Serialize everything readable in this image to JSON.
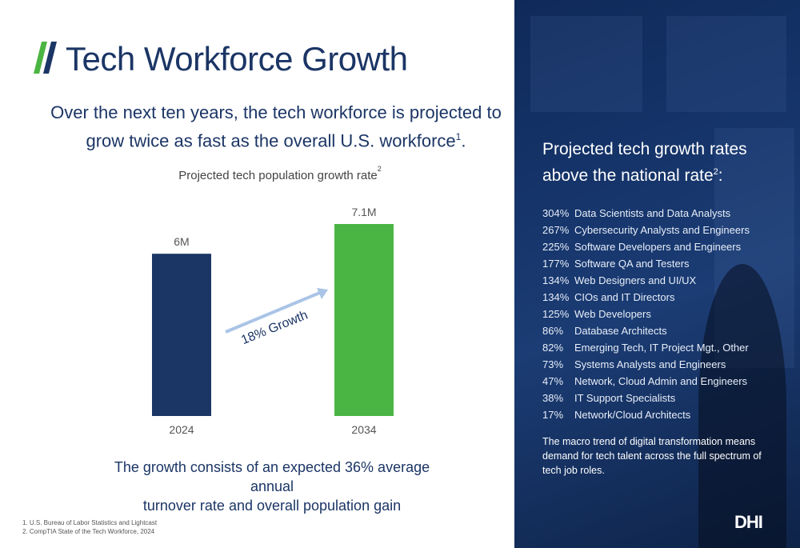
{
  "slide": {
    "title": "Tech Workforce Growth",
    "subtitle_line1": "Over the next ten years, the tech workforce is projected to",
    "subtitle_line2": "grow twice as fast as the overall U.S. workforce",
    "subtitle_sup": "1",
    "subtitle_end": ".",
    "footer_line1": "The growth consists of an expected 36% average annual",
    "footer_line2": "turnover rate and overall population gain",
    "footnote1": "1. U.S. Bureau of Labor Statistics and Lightcast",
    "footnote2": "2. CompTIA State of the Tech Workforce, 2024"
  },
  "chart_data": {
    "type": "bar",
    "title": "Projected tech population growth rate",
    "title_sup": "2",
    "categories": [
      "2024",
      "2034"
    ],
    "values": [
      6,
      7.1
    ],
    "value_labels": [
      "6M",
      "7.1M"
    ],
    "unit": "M",
    "ylim": [
      0,
      7.1
    ],
    "colors": [
      "#1b3565",
      "#4bb543"
    ],
    "annotation": "18% Growth",
    "annotation_color": "#a9c4e6",
    "grid": false
  },
  "panel": {
    "heading_line1": "Projected tech growth rates",
    "heading_line2": "above the national rate",
    "heading_sup": "2",
    "heading_end": ":",
    "rates": [
      {
        "pct": "304%",
        "role": "Data Scientists and Data Analysts"
      },
      {
        "pct": "267%",
        "role": "Cybersecurity Analysts and Engineers"
      },
      {
        "pct": "225%",
        "role": "Software Developers and Engineers"
      },
      {
        "pct": "177%",
        "role": "Software QA and Testers"
      },
      {
        "pct": "134%",
        "role": "Web Designers and UI/UX"
      },
      {
        "pct": "134%",
        "role": "CIOs and IT Directors"
      },
      {
        "pct": "125%",
        "role": "Web Developers"
      },
      {
        "pct": "86%",
        "role": "Database Architects"
      },
      {
        "pct": "82%",
        "role": "Emerging Tech, IT Project Mgt., Other"
      },
      {
        "pct": "73%",
        "role": "Systems Analysts and Engineers"
      },
      {
        "pct": "47%",
        "role": "Network, Cloud Admin and Engineers"
      },
      {
        "pct": "38%",
        "role": "IT Support Specialists"
      },
      {
        "pct": "17%",
        "role": "Network/Cloud Architects"
      }
    ],
    "note": "The macro trend of digital transformation means demand for tech talent across the full spectrum of tech job roles.",
    "logo": "DHI"
  },
  "colors": {
    "brand_navy": "#1b3565",
    "accent_green": "#4bb543",
    "logo_slash_green": "#4bb543",
    "logo_slash_navy": "#1b3565"
  }
}
